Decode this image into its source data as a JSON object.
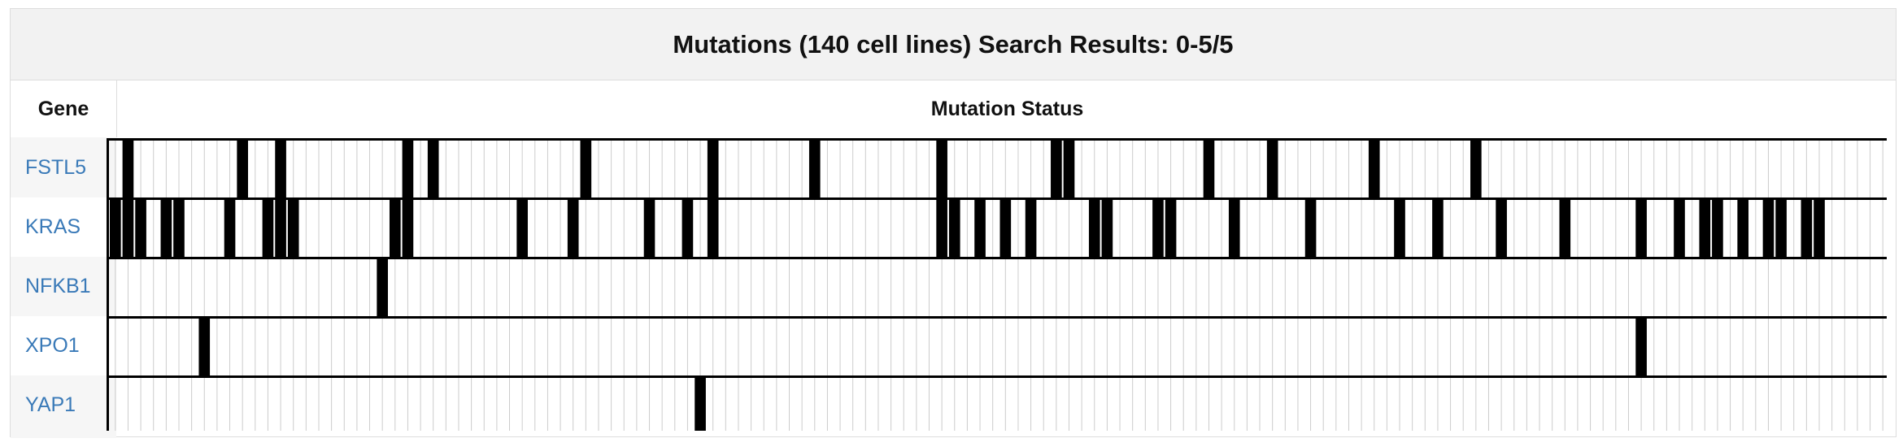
{
  "header": {
    "title": "Mutations (140 cell lines) Search Results: 0-5/5"
  },
  "table": {
    "gene_column_label": "Gene",
    "status_column_label": "Mutation Status",
    "cell_line_count": 140
  },
  "colors": {
    "mutated": "#000000",
    "unmutated_line": "#cccccc",
    "row_separator": "#000000",
    "gene_link": "#3a7ab8"
  },
  "genes": [
    {
      "name": "FSTL5",
      "mutated": [
        1,
        10,
        13,
        23,
        25,
        37,
        47,
        55,
        65,
        74,
        75,
        86,
        91,
        99,
        107
      ]
    },
    {
      "name": "KRAS",
      "mutated": [
        0,
        1,
        2,
        4,
        5,
        9,
        12,
        13,
        14,
        22,
        23,
        32,
        36,
        42,
        45,
        47,
        65,
        66,
        68,
        70,
        72,
        77,
        78,
        82,
        83,
        88,
        94,
        101,
        104,
        109,
        114,
        120,
        123,
        125,
        126,
        128,
        130,
        131,
        133,
        134
      ]
    },
    {
      "name": "NFKB1",
      "mutated": [
        21
      ]
    },
    {
      "name": "XPO1",
      "mutated": [
        7,
        120
      ]
    },
    {
      "name": "YAP1",
      "mutated": [
        46
      ]
    }
  ]
}
